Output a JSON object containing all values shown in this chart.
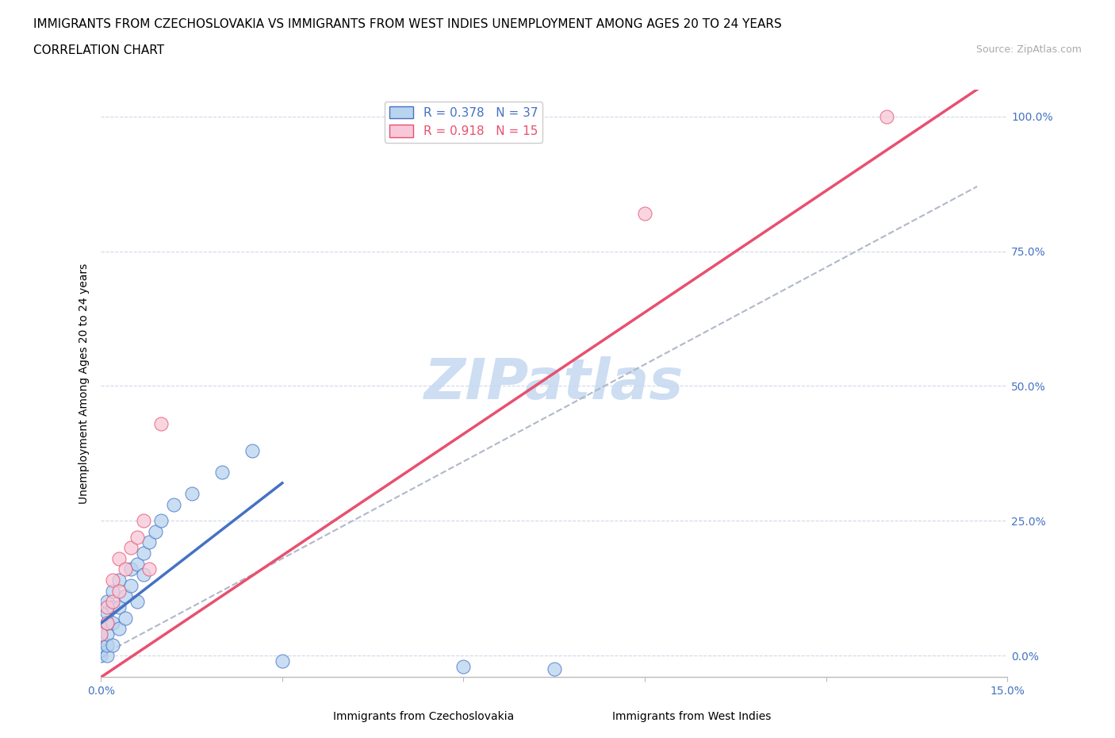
{
  "title_line1": "IMMIGRANTS FROM CZECHOSLOVAKIA VS IMMIGRANTS FROM WEST INDIES UNEMPLOYMENT AMONG AGES 20 TO 24 YEARS",
  "title_line2": "CORRELATION CHART",
  "source_text": "Source: ZipAtlas.com",
  "ylabel": "Unemployment Among Ages 20 to 24 years",
  "xmin": 0.0,
  "xmax": 0.15,
  "ymin": -0.04,
  "ymax": 1.05,
  "yticks": [
    0.0,
    0.25,
    0.5,
    0.75,
    1.0
  ],
  "ytick_labels": [
    "0.0%",
    "25.0%",
    "50.0%",
    "75.0%",
    "100.0%"
  ],
  "xtick_labels_show": [
    "0.0%",
    "15.0%"
  ],
  "legend_entries": [
    {
      "label": "R = 0.378   N = 37",
      "color": "#adc8e8"
    },
    {
      "label": "R = 0.918   N = 15",
      "color": "#f5b8cb"
    }
  ],
  "scatter_color_blue": "#b8d4ee",
  "scatter_color_pink": "#f8c8d8",
  "line_color_blue": "#4472c4",
  "line_color_pink": "#e85070",
  "line_color_dashed": "#b0b8c8",
  "watermark_text": "ZIPatlas",
  "watermark_color": "#c5d8f0",
  "background_color": "#ffffff",
  "title_fontsize": 11,
  "axis_label_fontsize": 10,
  "tick_fontsize": 10,
  "tick_color": "#4472c4",
  "blue_x": [
    0.0,
    0.0,
    0.0,
    0.0,
    0.0,
    0.0,
    0.001,
    0.001,
    0.001,
    0.001,
    0.001,
    0.001,
    0.002,
    0.002,
    0.002,
    0.002,
    0.003,
    0.003,
    0.003,
    0.004,
    0.004,
    0.005,
    0.005,
    0.006,
    0.006,
    0.007,
    0.007,
    0.008,
    0.009,
    0.01,
    0.012,
    0.015,
    0.02,
    0.025,
    0.03,
    0.06,
    0.075
  ],
  "blue_y": [
    0.0,
    0.01,
    0.02,
    0.03,
    0.04,
    0.05,
    0.0,
    0.02,
    0.04,
    0.06,
    0.08,
    0.1,
    0.02,
    0.06,
    0.09,
    0.12,
    0.05,
    0.09,
    0.14,
    0.07,
    0.11,
    0.13,
    0.16,
    0.1,
    0.17,
    0.15,
    0.19,
    0.21,
    0.23,
    0.25,
    0.28,
    0.3,
    0.34,
    0.38,
    -0.01,
    -0.02,
    -0.025
  ],
  "pink_x": [
    0.0,
    0.001,
    0.001,
    0.002,
    0.002,
    0.003,
    0.003,
    0.004,
    0.005,
    0.006,
    0.007,
    0.008,
    0.01,
    0.09,
    0.13
  ],
  "pink_y": [
    0.04,
    0.06,
    0.09,
    0.1,
    0.14,
    0.12,
    0.18,
    0.16,
    0.2,
    0.22,
    0.25,
    0.16,
    0.43,
    0.82,
    1.0
  ],
  "blue_line_x": [
    0.0,
    0.03
  ],
  "blue_line_y": [
    0.06,
    0.32
  ],
  "pink_line_x": [
    0.0,
    0.145
  ],
  "pink_line_y": [
    -0.04,
    1.05
  ],
  "dash_line_x": [
    0.0,
    0.145
  ],
  "dash_line_y": [
    0.0,
    0.87
  ]
}
